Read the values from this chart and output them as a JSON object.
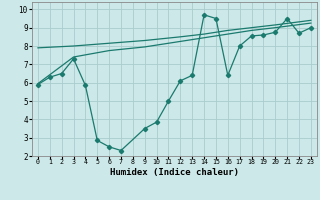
{
  "xlabel": "Humidex (Indice chaleur)",
  "bg_color": "#cce8e8",
  "line_color": "#1a7a6e",
  "grid_color": "#aacccc",
  "xlim": [
    -0.5,
    23.5
  ],
  "ylim": [
    2,
    10.4
  ],
  "xticks": [
    0,
    1,
    2,
    3,
    4,
    5,
    6,
    7,
    8,
    9,
    10,
    11,
    12,
    13,
    14,
    15,
    16,
    17,
    18,
    19,
    20,
    21,
    22,
    23
  ],
  "yticks": [
    2,
    3,
    4,
    5,
    6,
    7,
    8,
    9,
    10
  ],
  "line1_x": [
    0,
    1,
    2,
    3,
    4,
    5,
    6,
    7,
    9,
    10,
    11,
    12,
    13,
    14,
    15,
    16,
    17,
    18,
    19,
    20,
    21,
    22,
    23
  ],
  "line1_y": [
    5.9,
    6.3,
    6.5,
    7.3,
    5.85,
    2.85,
    2.5,
    2.3,
    3.5,
    3.85,
    5.0,
    6.1,
    6.4,
    9.7,
    9.5,
    6.4,
    8.0,
    8.55,
    8.6,
    8.75,
    9.5,
    8.7,
    9.0
  ],
  "line2_x": [
    0,
    3,
    6,
    9,
    12,
    14,
    16,
    18,
    20,
    23
  ],
  "line2_y": [
    7.9,
    8.0,
    8.15,
    8.3,
    8.5,
    8.65,
    8.85,
    9.0,
    9.15,
    9.4
  ],
  "line3_x": [
    0,
    3,
    6,
    9,
    12,
    14,
    16,
    18,
    20,
    23
  ],
  "line3_y": [
    5.95,
    7.4,
    7.75,
    7.95,
    8.25,
    8.45,
    8.65,
    8.85,
    9.0,
    9.25
  ]
}
